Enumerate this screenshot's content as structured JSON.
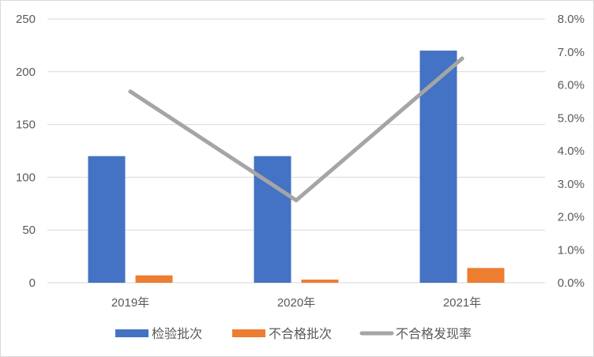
{
  "chart_data": {
    "type": "bar",
    "categories": [
      "2019年",
      "2020年",
      "2021年"
    ],
    "series": [
      {
        "name": "检验批次",
        "type": "bar",
        "axis": "left",
        "color": "#4472c4",
        "values": [
          120,
          120,
          220
        ]
      },
      {
        "name": "不合格批次",
        "type": "bar",
        "axis": "left",
        "color": "#ed7d31",
        "values": [
          7,
          3,
          14
        ]
      },
      {
        "name": "不合格发现率",
        "type": "line",
        "axis": "right",
        "color": "#a5a5a5",
        "values": [
          5.8,
          2.5,
          6.8
        ]
      }
    ],
    "y_left": {
      "min": 0,
      "max": 250,
      "ticks": [
        "0",
        "50",
        "100",
        "150",
        "200",
        "250"
      ]
    },
    "y_right": {
      "min": 0,
      "max": 8,
      "unit": "%",
      "ticks": [
        "0.0%",
        "1.0%",
        "2.0%",
        "3.0%",
        "4.0%",
        "5.0%",
        "6.0%",
        "7.0%",
        "8.0%"
      ]
    },
    "grid": true,
    "legend_position": "bottom"
  }
}
